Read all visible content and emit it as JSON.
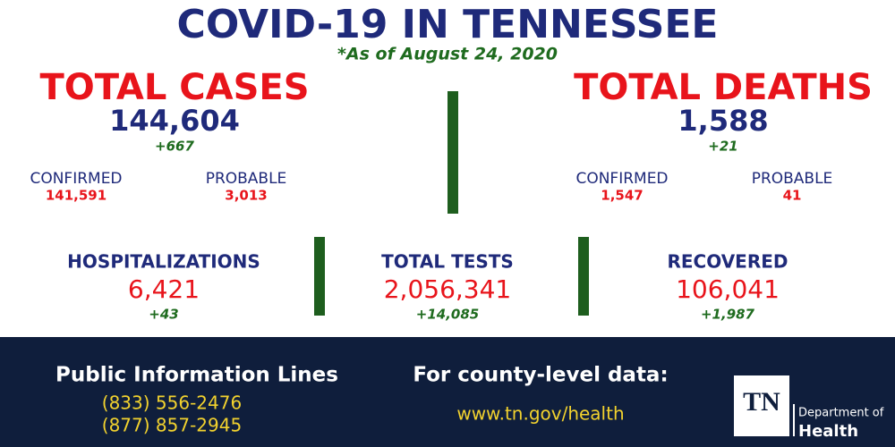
{
  "header": {
    "title": "COVID-19 IN TENNESSEE",
    "subtitle": "*As of August 24, 2020"
  },
  "total_cases": {
    "label": "TOTAL CASES",
    "value": "144,604",
    "change": "+667",
    "confirmed": {
      "label": "CONFIRMED",
      "value": "141,591"
    },
    "probable": {
      "label": "PROBABLE",
      "value": "3,013"
    }
  },
  "total_deaths": {
    "label": "TOTAL DEATHS",
    "value": "1,588",
    "change": "+21",
    "confirmed": {
      "label": "CONFIRMED",
      "value": "1,547"
    },
    "probable": {
      "label": "PROBABLE",
      "value": "41"
    }
  },
  "stats": [
    {
      "label": "HOSPITALIZATIONS",
      "value": "6,421",
      "change": "+43"
    },
    {
      "label": "TOTAL TESTS",
      "value": "2,056,341",
      "change": "+14,085"
    },
    {
      "label": "RECOVERED",
      "value": "106,041",
      "change": "+1,987"
    }
  ],
  "footer": {
    "info_title": "Public Information Lines",
    "phones": [
      "(833) 556-2476",
      "(877) 857-2945"
    ],
    "county_title": "For county-level data:",
    "url": "www.tn.gov/health",
    "logo": {
      "mark": "TN",
      "line1": "Department of",
      "line2": "Health"
    }
  }
}
